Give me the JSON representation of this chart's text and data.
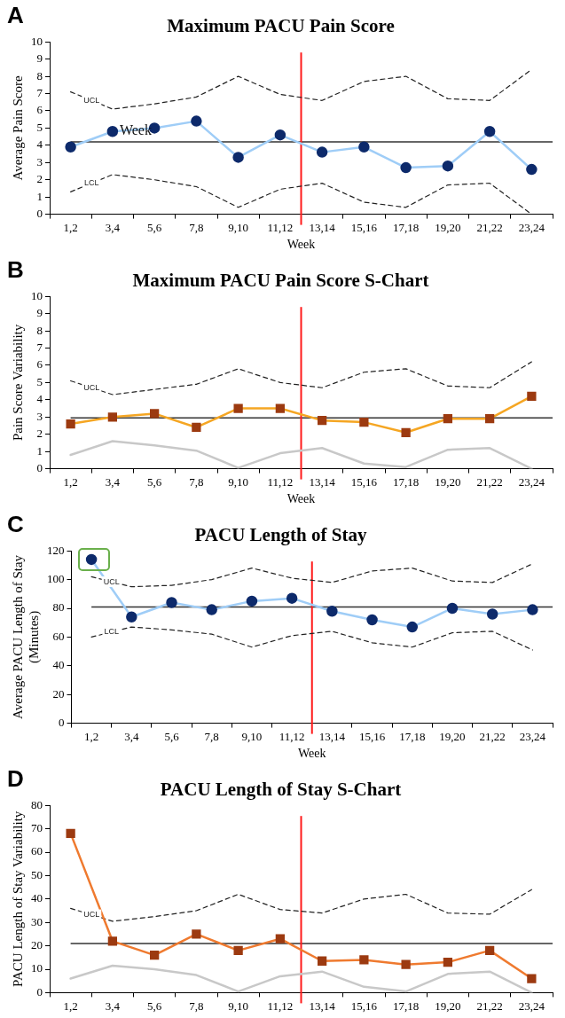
{
  "chart_data": [
    {
      "type": "line",
      "title": "Maximum PACU Pain Score",
      "xlabel": "Week",
      "ylabel": "Average Pain Score",
      "annotations": [
        "A",
        {
          "text": "Week",
          "x": "3,4",
          "y": 4.85
        }
      ],
      "categories": [
        "1,2",
        "3,4",
        "5,6",
        "7,8",
        "9,10",
        "11,12",
        "13,14",
        "15,16",
        "17,18",
        "19,20",
        "21,22",
        "23,24"
      ],
      "ylim": [
        0,
        10
      ],
      "yticks": [
        0,
        1,
        2,
        3,
        4,
        5,
        6,
        7,
        8,
        9,
        10
      ],
      "grid": false,
      "legend": false,
      "series": [
        {
          "color": "#9fcdf7",
          "colors": [
            "#0d2a6b",
            "#0d2a6b",
            "#0d2a6b",
            "#0d2a6b",
            "#0d2a6b",
            "#0d2a6b",
            "#0d2a6b",
            "#0d2a6b",
            "#0d2a6b",
            "#0d2a6b",
            "#0d2a6b",
            "#0d2a6b"
          ],
          "marker": "circle",
          "line_style": "solid",
          "values": [
            3.9,
            4.8,
            5.0,
            5.4,
            3.3,
            4.6,
            3.6,
            3.9,
            2.7,
            2.8,
            4.8,
            2.6
          ]
        },
        {
          "name": "UCL",
          "color": "#222222",
          "marker": "none",
          "line_style": "dashed",
          "values": [
            7.1,
            6.1,
            6.4,
            6.8,
            8.0,
            6.95,
            6.6,
            7.7,
            8.0,
            6.7,
            6.6,
            8.4
          ]
        },
        {
          "name": "LCL",
          "color": "#222222",
          "marker": "none",
          "line_style": "dashed",
          "values": [
            1.3,
            2.3,
            2.0,
            1.6,
            0.4,
            1.45,
            1.8,
            0.7,
            0.4,
            1.7,
            1.8,
            0
          ]
        }
      ],
      "ref_lines": [
        {
          "axis": "y",
          "value": 4.2,
          "color": "#333333"
        },
        {
          "axis": "x",
          "value": "11,12",
          "color": "#ff1a1a"
        }
      ]
    },
    {
      "type": "line",
      "title": "Maximum PACU Pain Score S-Chart",
      "xlabel": "Week",
      "ylabel": "Pain Score Variability",
      "annotations": [
        "B"
      ],
      "categories": [
        "1,2",
        "3,4",
        "5,6",
        "7,8",
        "9,10",
        "11,12",
        "13,14",
        "15,16",
        "17,18",
        "19,20",
        "21,22",
        "23,24"
      ],
      "ylim": [
        0,
        10
      ],
      "yticks": [
        0,
        1,
        2,
        3,
        4,
        5,
        6,
        7,
        8,
        9,
        10
      ],
      "grid": false,
      "legend": false,
      "series": [
        {
          "color": "#f5a623",
          "colors": [
            "#9c3a10",
            "#9c3a10",
            "#9c3a10",
            "#9c3a10",
            "#9c3a10",
            "#9c3a10",
            "#9c3a10",
            "#9c3a10",
            "#9c3a10",
            "#9c3a10",
            "#9c3a10",
            "#9c3a10"
          ],
          "marker": "square",
          "line_style": "solid",
          "values": [
            2.6,
            3.0,
            3.2,
            2.4,
            3.5,
            3.5,
            2.8,
            2.7,
            2.1,
            2.9,
            2.9,
            4.2
          ]
        },
        {
          "name": "UCL",
          "color": "#222222",
          "marker": "none",
          "line_style": "dashed",
          "values": [
            5.1,
            4.3,
            4.6,
            4.9,
            5.8,
            5.0,
            4.7,
            5.6,
            5.8,
            4.8,
            4.7,
            6.2
          ]
        },
        {
          "color": "#c8c8c8",
          "marker": "none",
          "line_style": "solid",
          "values": [
            0.8,
            1.6,
            1.35,
            1.05,
            0.05,
            0.9,
            1.2,
            0.3,
            0.1,
            1.1,
            1.2,
            0
          ]
        }
      ],
      "ref_lines": [
        {
          "axis": "y",
          "value": 2.95,
          "color": "#333333"
        },
        {
          "axis": "x",
          "value": "11,12",
          "color": "#ff1a1a"
        }
      ]
    },
    {
      "type": "line",
      "title": "PACU Length of Stay",
      "xlabel": "Week",
      "ylabel": "Average PACU Length of Stay\n(Minutes)",
      "annotations": [
        "C"
      ],
      "categories": [
        "1,2",
        "3,4",
        "5,6",
        "7,8",
        "9,10",
        "11,12",
        "13,14",
        "15,16",
        "17,18",
        "19,20",
        "21,22",
        "23,24"
      ],
      "ylim": [
        0,
        120
      ],
      "yticks": [
        0,
        20,
        40,
        60,
        80,
        100,
        120
      ],
      "grid": false,
      "legend": false,
      "series": [
        {
          "color": "#9fcdf7",
          "colors": [
            "#0d2a6b",
            "#0d2a6b",
            "#0d2a6b",
            "#0d2a6b",
            "#0d2a6b",
            "#0d2a6b",
            "#0d2a6b",
            "#0d2a6b",
            "#0d2a6b",
            "#0d2a6b",
            "#0d2a6b",
            "#0d2a6b"
          ],
          "marker": "circle",
          "line_style": "solid",
          "values": [
            114,
            74,
            84,
            79,
            85,
            87,
            78,
            72,
            67,
            80,
            76,
            79
          ]
        },
        {
          "name": "UCL",
          "color": "#222222",
          "marker": "none",
          "line_style": "dashed",
          "values": [
            102,
            95,
            96,
            100,
            108,
            101,
            98,
            106,
            108,
            99,
            98,
            111
          ]
        },
        {
          "name": "LCL",
          "color": "#222222",
          "marker": "none",
          "line_style": "dashed",
          "values": [
            60,
            67,
            65,
            62,
            53,
            61,
            64,
            56,
            53,
            63,
            64,
            51
          ]
        }
      ],
      "ref_lines": [
        {
          "axis": "y",
          "value": 81,
          "color": "#333333"
        },
        {
          "axis": "x",
          "value": "11,12",
          "color": "#ff1a1a"
        }
      ]
    },
    {
      "type": "line",
      "title": "PACU Length of Stay S-Chart",
      "ylabel": "PACU Length of Stay Variability",
      "annotations": [
        "D"
      ],
      "categories": [
        "1,2",
        "3,4",
        "5,6",
        "7,8",
        "9,10",
        "11,12",
        "13,14",
        "15,16",
        "17,18",
        "19,20",
        "21,22",
        "23,24"
      ],
      "ylim": [
        0,
        80
      ],
      "yticks": [
        0,
        10,
        20,
        30,
        40,
        50,
        60,
        70,
        80
      ],
      "grid": false,
      "legend": false,
      "series": [
        {
          "color": "#ef7a2f",
          "colors": [
            "#9c3a10",
            "#9c3a10",
            "#9c3a10",
            "#9c3a10",
            "#9c3a10",
            "#9c3a10",
            "#9c3a10",
            "#9c3a10",
            "#9c3a10",
            "#9c3a10",
            "#9c3a10",
            "#9c3a10"
          ],
          "marker": "square",
          "line_style": "solid",
          "values": [
            68,
            22,
            16,
            25,
            18,
            23,
            13.5,
            14,
            12,
            13,
            18,
            6
          ]
        },
        {
          "name": "UCL",
          "color": "#222222",
          "marker": "none",
          "line_style": "dashed",
          "values": [
            36,
            30.5,
            32.5,
            35,
            42,
            35.5,
            34,
            40,
            42,
            34,
            33.5,
            44
          ]
        },
        {
          "color": "#c8c8c8",
          "marker": "none",
          "line_style": "solid",
          "values": [
            6,
            11.5,
            10,
            7.5,
            0.5,
            7,
            9,
            2.5,
            0.5,
            8,
            9,
            0
          ]
        }
      ],
      "ref_lines": [
        {
          "axis": "y",
          "value": 21,
          "color": "#333333"
        },
        {
          "axis": "x",
          "value": "11,12",
          "color": "#ff1a1a"
        }
      ]
    }
  ]
}
